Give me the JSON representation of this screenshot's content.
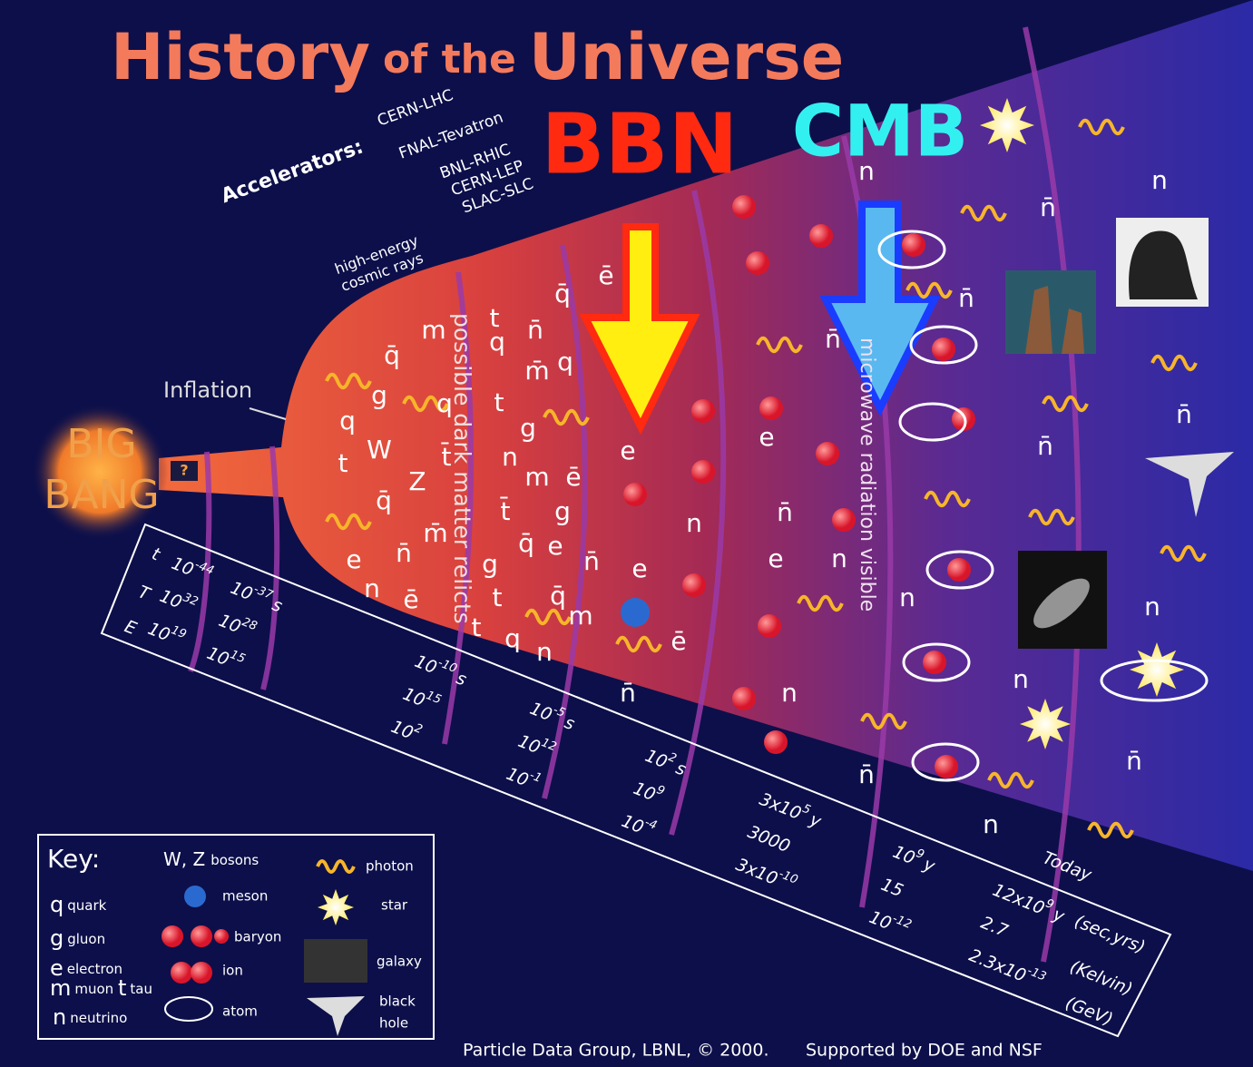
{
  "title": {
    "parts": [
      "History",
      "of the",
      "Universe"
    ]
  },
  "accelerators": {
    "label": "Accelerators:",
    "items": [
      "CERN-LHC",
      "FNAL-Tevatron",
      "BNL-RHIC",
      "CERN-LEP",
      "SLAC-SLC"
    ],
    "cosmic": [
      "high-energy",
      "cosmic rays"
    ]
  },
  "overlays": {
    "bbn": "BBN",
    "cmb": "CMB"
  },
  "big_bang": {
    "lines": [
      "BIG",
      "BANG"
    ],
    "unknown": "?"
  },
  "inflation": "Inflation",
  "eras": {
    "dark_matter": "possible dark matter relicts",
    "microwave": "microwave radiation visible"
  },
  "particles": [
    "q̄",
    "g",
    "q",
    "q",
    "W",
    "t",
    "q̄",
    "Z",
    "t̄",
    "e",
    "n̄",
    "m̄",
    "n",
    "ē",
    "m",
    "t",
    "n̄",
    "q̄",
    "q",
    "m̄",
    "q",
    "t",
    "g",
    "n",
    "m",
    "ē",
    "t̄",
    "g",
    "q̄",
    "e",
    "n̄",
    "g",
    "t",
    "q̄",
    "m",
    "t",
    "q",
    "n",
    "ē",
    "e",
    "e",
    "n",
    "ē",
    "n̄",
    "e",
    "n̄",
    "e",
    "n",
    "n",
    "n̄",
    "n",
    "n",
    "n̄",
    "n",
    "n̄",
    "n",
    "n̄",
    "n̄",
    "n",
    "n̄",
    "n",
    "n̄"
  ],
  "timeline": {
    "rows": [
      "t",
      "T",
      "E"
    ],
    "columns": [
      [
        {
          "base": "10",
          "exp": "-44"
        },
        {
          "base": "10",
          "exp": "32"
        },
        {
          "base": "10",
          "exp": "19"
        }
      ],
      [
        {
          "base": "10",
          "exp": "-37",
          "unit": "s"
        },
        {
          "base": "10",
          "exp": "28"
        },
        {
          "base": "10",
          "exp": "15"
        }
      ],
      [
        {
          "base": "10",
          "exp": "-10",
          "unit": "s"
        },
        {
          "base": "10",
          "exp": "15"
        },
        {
          "base": "10",
          "exp": "2"
        }
      ],
      [
        {
          "base": "10",
          "exp": "-5",
          "unit": "s"
        },
        {
          "base": "10",
          "exp": "12"
        },
        {
          "base": "10",
          "exp": "-1"
        }
      ],
      [
        {
          "base": "10",
          "exp": "2",
          "unit": "s"
        },
        {
          "base": "10",
          "exp": "9"
        },
        {
          "base": "10",
          "exp": "-4"
        }
      ],
      [
        {
          "prefix": "3x",
          "base": "10",
          "exp": "5",
          "unit": "y"
        },
        {
          "base": "3000"
        },
        {
          "prefix": "3x",
          "base": "10",
          "exp": "-10"
        }
      ],
      [
        {
          "base": "10",
          "exp": "9",
          "unit": "y"
        },
        {
          "base": "15"
        },
        {
          "base": "10",
          "exp": "-12"
        }
      ],
      [
        {
          "prefix": "12x",
          "base": "10",
          "exp": "9",
          "unit": "y"
        },
        {
          "base": "2.7"
        },
        {
          "prefix": "2.3x",
          "base": "10",
          "exp": "-13"
        }
      ]
    ],
    "today": "Today",
    "units": [
      "(sec,yrs)",
      "(Kelvin)",
      "(GeV)"
    ]
  },
  "key": {
    "title": "Key:",
    "letters": [
      {
        "symbol": "q",
        "label": "quark"
      },
      {
        "symbol": "g",
        "label": "gluon"
      },
      {
        "symbol": "e",
        "label": "electron"
      },
      {
        "symbol": "m",
        "label": "muon"
      },
      {
        "symbol": "t",
        "label": "tau"
      },
      {
        "symbol": "n",
        "label": "neutrino"
      }
    ],
    "bosons": {
      "symbol": "W, Z",
      "label": "bosons"
    },
    "icons": [
      "meson",
      "baryon",
      "ion",
      "atom"
    ],
    "objects": [
      "photon",
      "star",
      "galaxy"
    ],
    "black_hole": [
      "black",
      "hole"
    ]
  },
  "footer": {
    "credit": "Particle Data Group, LBNL, © 2000.",
    "support": "Supported by DOE and NSF"
  }
}
